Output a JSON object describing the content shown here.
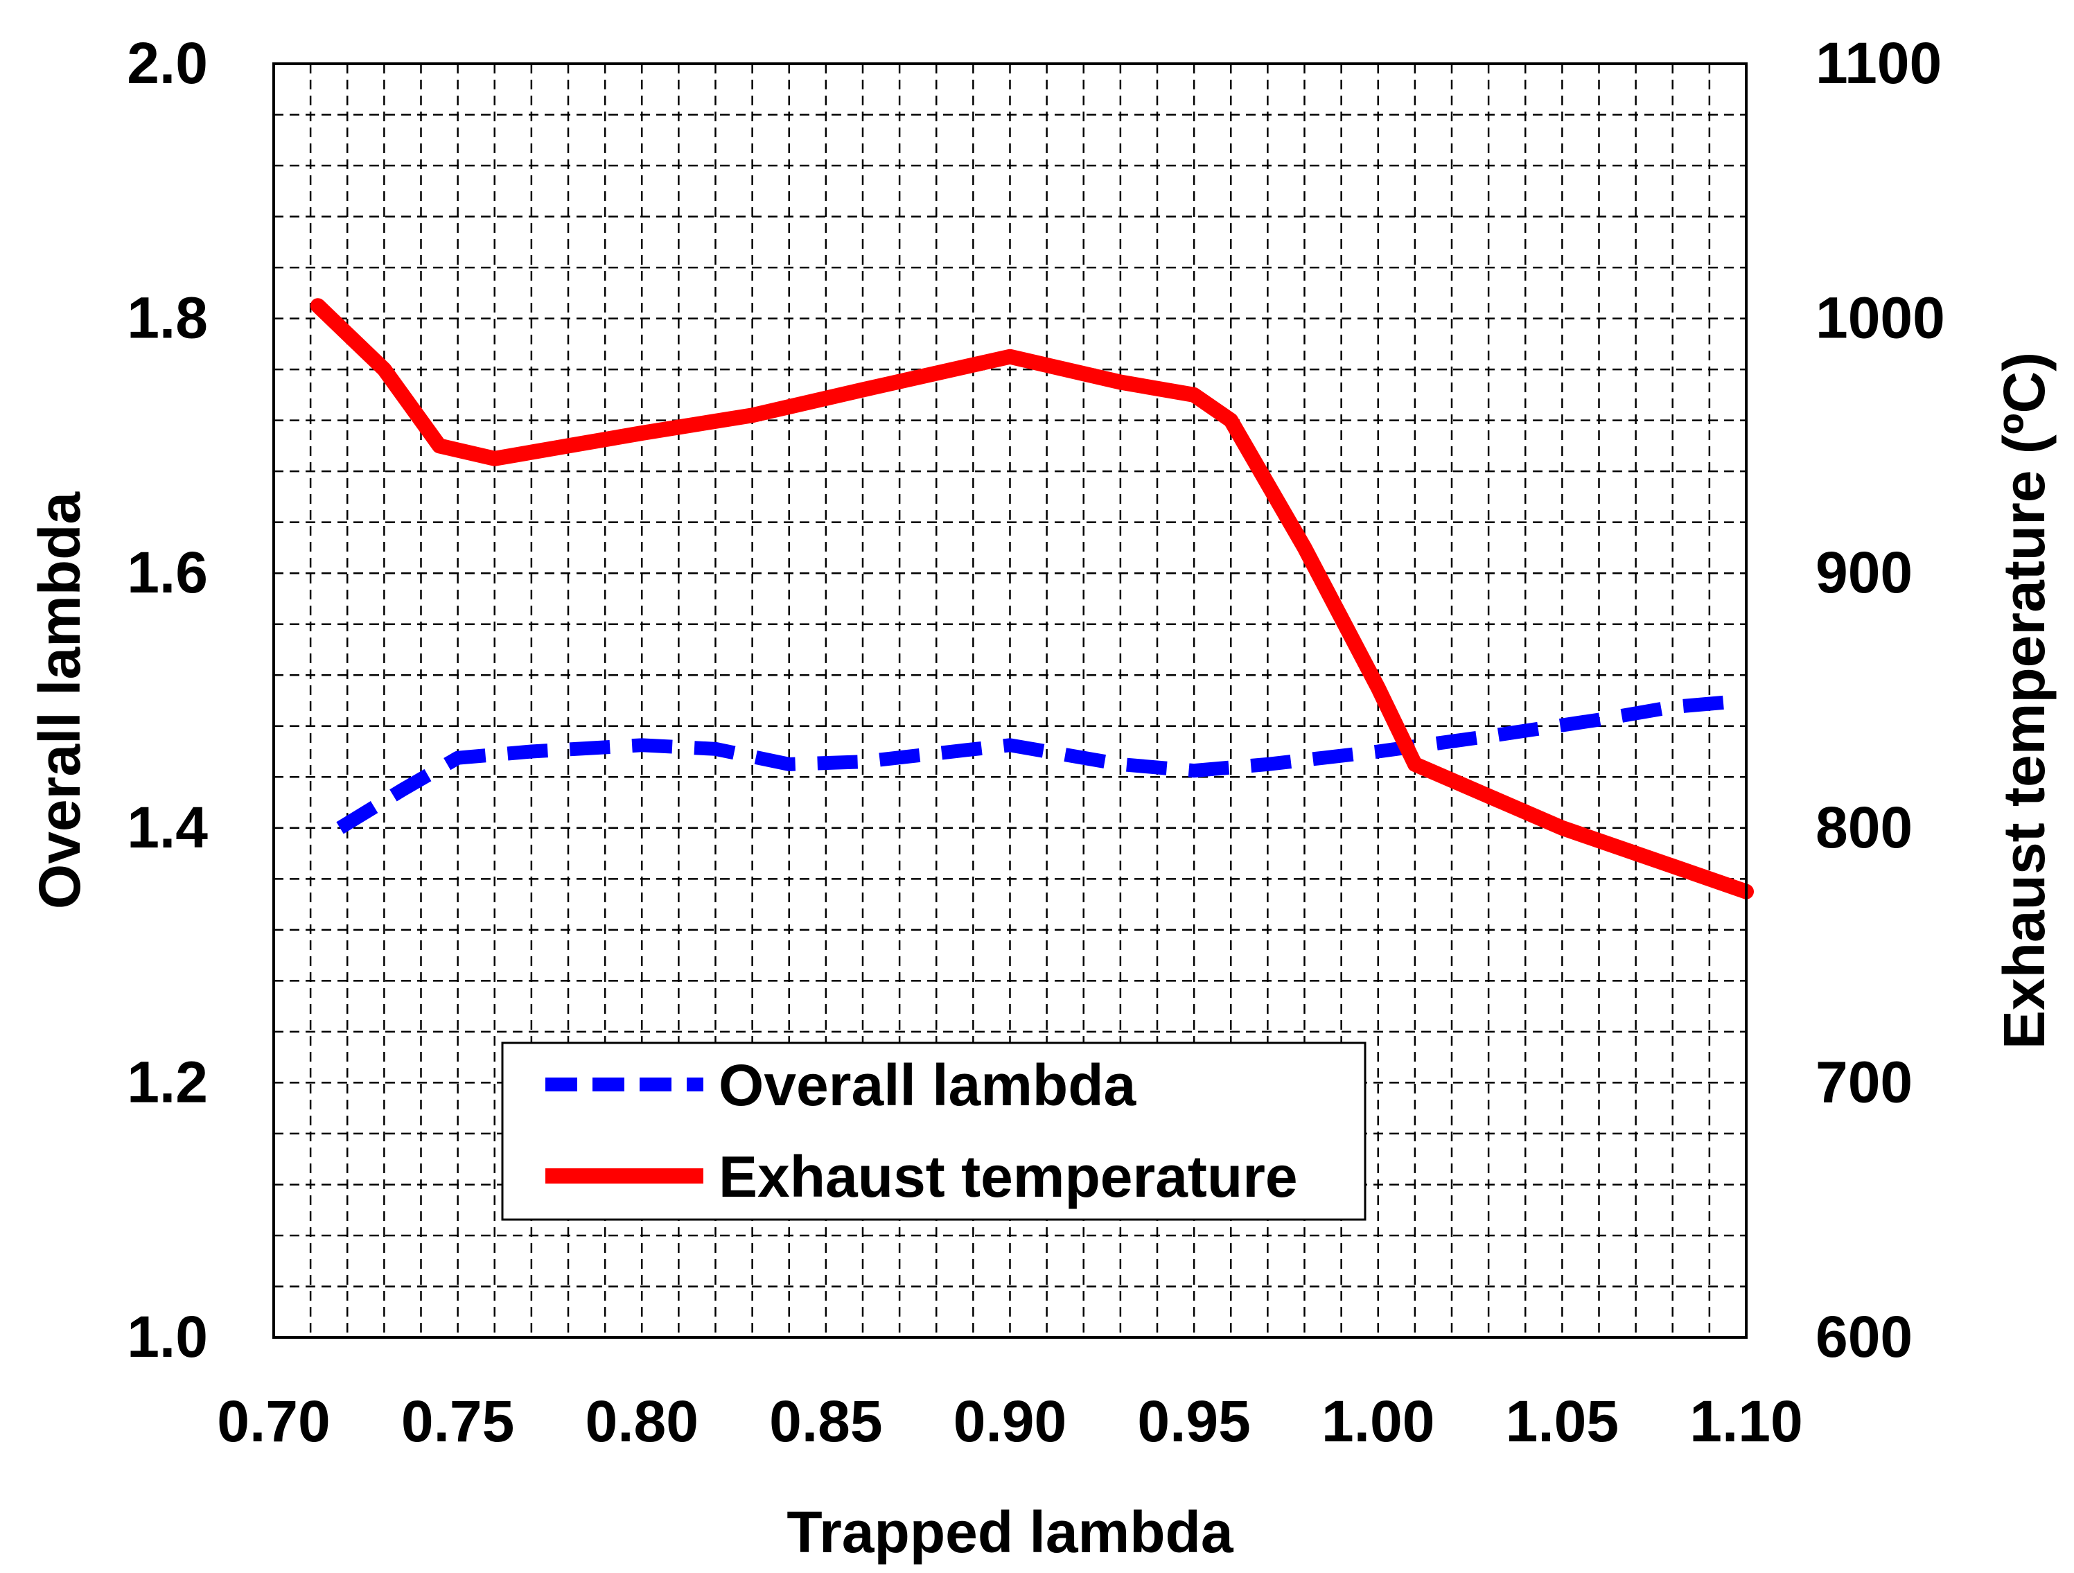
{
  "chart_data": {
    "type": "line",
    "title": "",
    "xlabel": "Trapped lambda",
    "ylabel": "Overall lambda",
    "y2label": "Exhaust temperature (ºC)",
    "xlim": [
      0.7,
      1.1
    ],
    "ylim": [
      1.0,
      2.0
    ],
    "y2lim": [
      600,
      1100
    ],
    "grid": true,
    "x_ticks": [
      "0.70",
      "0.75",
      "0.80",
      "0.85",
      "0.90",
      "0.95",
      "1.00",
      "1.05",
      "1.10"
    ],
    "y_ticks": [
      "1.0",
      "1.2",
      "1.4",
      "1.6",
      "1.8",
      "2.0"
    ],
    "y2_ticks": [
      "600",
      "700",
      "800",
      "900",
      "1000",
      "1100"
    ],
    "legend_position": "bottom-center",
    "series": [
      {
        "name": "Overall lambda",
        "axis": "left",
        "color": "#0000ff",
        "style": "dashed",
        "points": [
          [
            0.718,
            1.4
          ],
          [
            0.735,
            1.43
          ],
          [
            0.75,
            1.455
          ],
          [
            0.77,
            1.46
          ],
          [
            0.8,
            1.465
          ],
          [
            0.82,
            1.462
          ],
          [
            0.84,
            1.45
          ],
          [
            0.86,
            1.452
          ],
          [
            0.9,
            1.465
          ],
          [
            0.93,
            1.45
          ],
          [
            0.95,
            1.445
          ],
          [
            0.97,
            1.45
          ],
          [
            1.0,
            1.46
          ],
          [
            1.03,
            1.472
          ],
          [
            1.06,
            1.485
          ],
          [
            1.08,
            1.495
          ],
          [
            1.1,
            1.5
          ]
        ]
      },
      {
        "name": "Exhaust temperature",
        "axis": "right",
        "color": "#ff0000",
        "style": "solid",
        "points": [
          [
            0.712,
            1005
          ],
          [
            0.73,
            980
          ],
          [
            0.745,
            950
          ],
          [
            0.76,
            945
          ],
          [
            0.78,
            950
          ],
          [
            0.8,
            955
          ],
          [
            0.83,
            962
          ],
          [
            0.86,
            972
          ],
          [
            0.9,
            985
          ],
          [
            0.93,
            975
          ],
          [
            0.95,
            970
          ],
          [
            0.96,
            960
          ],
          [
            0.98,
            910
          ],
          [
            1.0,
            855
          ],
          [
            1.01,
            825
          ],
          [
            1.05,
            800
          ],
          [
            1.08,
            785
          ],
          [
            1.1,
            775
          ]
        ]
      }
    ]
  }
}
